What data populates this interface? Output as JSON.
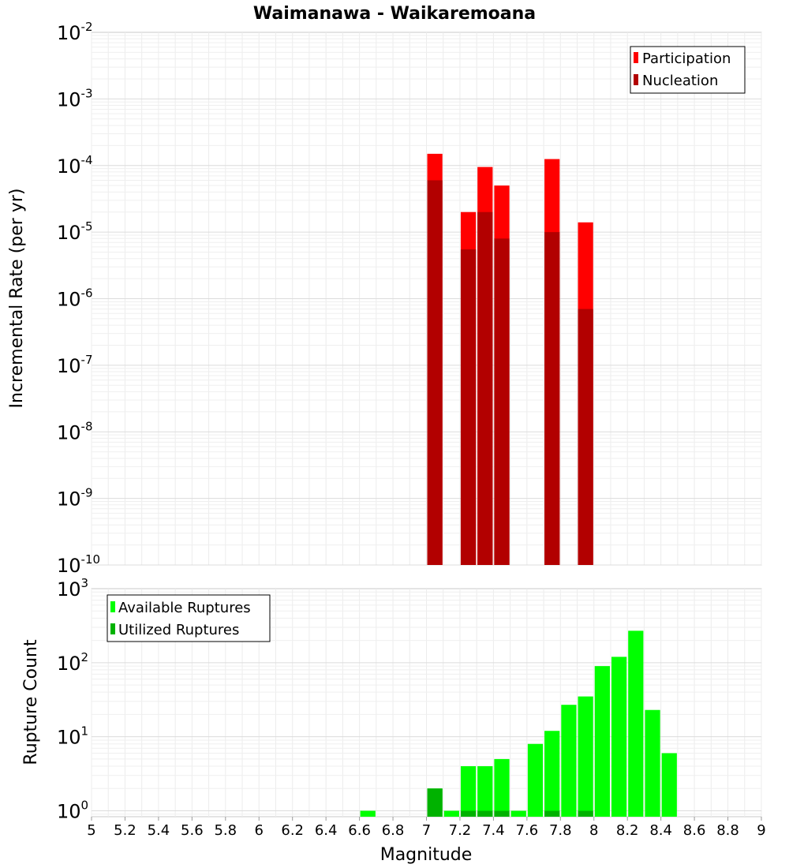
{
  "chart_data": {
    "title": "Waimanawa - Waikaremoana",
    "xlabel": "Magnitude",
    "xlim": [
      5,
      9
    ],
    "xticks": [
      "5",
      "5.2",
      "5.4",
      "5.6",
      "5.8",
      "6",
      "6.2",
      "6.4",
      "6.6",
      "6.8",
      "7",
      "7.2",
      "7.4",
      "7.6",
      "7.8",
      "8",
      "8.2",
      "8.4",
      "8.6",
      "8.8",
      "9"
    ],
    "bin_width": 0.1,
    "panels": [
      {
        "type": "bar",
        "ylabel": "Incremental Rate (per yr)",
        "yscale": "log",
        "ylim_exp": [
          -10,
          -2
        ],
        "ytick_exps": [
          "-10",
          "-9",
          "-8",
          "-7",
          "-6",
          "-5",
          "-4",
          "-3",
          "-2"
        ],
        "legend": {
          "position": "top-right",
          "entries": [
            "Participation",
            "Nucleation"
          ]
        },
        "series": [
          {
            "name": "Participation",
            "color": "#ff0000",
            "x": [
              7.05,
              7.25,
              7.35,
              7.45,
              7.75,
              7.95
            ],
            "values": [
              0.00015,
              2e-05,
              9.5e-05,
              5e-05,
              0.000125,
              1.4e-05
            ]
          },
          {
            "name": "Nucleation",
            "color": "#b20000",
            "x": [
              7.05,
              7.25,
              7.35,
              7.45,
              7.75,
              7.95
            ],
            "values": [
              6e-05,
              5.5e-06,
              2e-05,
              8e-06,
              1e-05,
              7e-07
            ]
          }
        ]
      },
      {
        "type": "bar",
        "ylabel": "Rupture Count",
        "yscale": "log",
        "ylim_exp": [
          -0.08,
          3
        ],
        "ytick_exps": [
          "0",
          "1",
          "2",
          "3"
        ],
        "legend": {
          "position": "top-left",
          "entries": [
            "Available Ruptures",
            "Utilized Ruptures"
          ]
        },
        "series": [
          {
            "name": "Available Ruptures",
            "color": "#00ff00",
            "x": [
              6.65,
              7.05,
              7.15,
              7.25,
              7.35,
              7.45,
              7.55,
              7.65,
              7.75,
              7.85,
              7.95,
              8.05,
              8.15,
              8.25,
              8.35,
              8.45
            ],
            "values": [
              1,
              2,
              1,
              4,
              4,
              5,
              1,
              8,
              12,
              27,
              35,
              90,
              120,
              270,
              23,
              6
            ]
          },
          {
            "name": "Utilized Ruptures",
            "color": "#00b200",
            "x": [
              7.05,
              7.25,
              7.35,
              7.45,
              7.75,
              7.95
            ],
            "values": [
              2,
              1,
              1,
              1,
              1,
              1
            ]
          }
        ]
      }
    ]
  }
}
